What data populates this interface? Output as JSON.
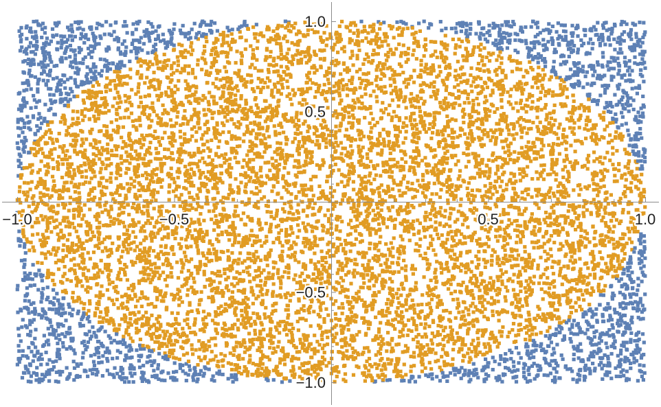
{
  "chart_data": {
    "type": "scatter",
    "title": "",
    "xlabel": "",
    "ylabel": "",
    "xlim": [
      -1.0,
      1.0
    ],
    "ylim": [
      -1.0,
      1.0
    ],
    "grid": false,
    "legend": "none",
    "axes_origin": [
      0,
      0
    ],
    "x_ticks": [
      -1.0,
      -0.5,
      0.5,
      1.0
    ],
    "x_tick_labels": [
      "−1.0",
      "−0.5",
      "0.5",
      "1.0"
    ],
    "y_ticks": [
      1.0,
      0.5,
      -0.5,
      -1.0
    ],
    "y_tick_labels": [
      "1.0",
      "0.5",
      "−0.5",
      "−1.0"
    ],
    "sampling": "uniform random points in the square [-1,1]x[-1,1], approx 10000 points; colored by whether x^2+y^2 <= 1",
    "series": [
      {
        "color": "#5E81B5",
        "rule": "x^2 + y^2 > 1",
        "approx_count": 2150
      },
      {
        "color": "#E19C24",
        "rule": "x^2 + y^2 <= 1",
        "approx_count": 7850
      }
    ]
  }
}
